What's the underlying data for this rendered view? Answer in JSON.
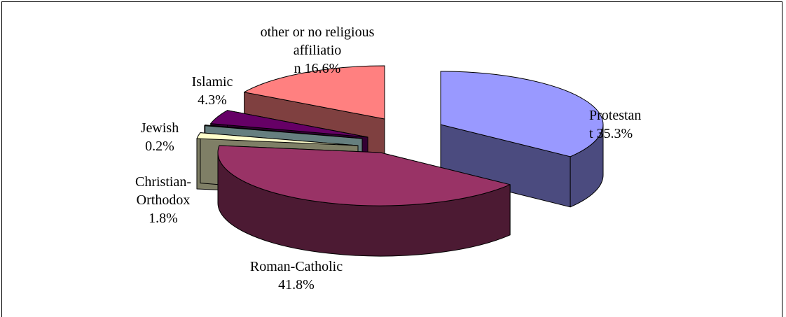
{
  "chart_data": {
    "type": "pie",
    "style": "3d-exploded",
    "title": "",
    "slices": [
      {
        "label": "Protestant",
        "label_lines": [
          "Protestan",
          "t  35.3%"
        ],
        "value": 35.3,
        "color": "#9999ff",
        "side_color": "#4b4b7f"
      },
      {
        "label": "Roman-Catholic",
        "label_lines": [
          "Roman-Catholic",
          "41.8%"
        ],
        "value": 41.8,
        "color": "#993366",
        "side_color": "#4c1a33"
      },
      {
        "label": "Christian-Orthodox",
        "label_lines": [
          "Christian-",
          "Orthodox",
          "1.8%"
        ],
        "value": 1.8,
        "color": "#ffffcc",
        "side_color": "#7f7f66"
      },
      {
        "label": "Jewish",
        "label_lines": [
          "Jewish",
          "0.2%"
        ],
        "value": 0.2,
        "color": "#ccffff",
        "side_color": "#667f7f"
      },
      {
        "label": "Islamic",
        "label_lines": [
          "Islamic",
          "4.3%"
        ],
        "value": 4.3,
        "color": "#660066",
        "side_color": "#330033"
      },
      {
        "label": "other or no religious affiliation",
        "label_lines": [
          "other or no religious",
          "affiliatio",
          "n 16.6%"
        ],
        "value": 16.6,
        "color": "#ff8080",
        "side_color": "#7f4040"
      }
    ]
  }
}
